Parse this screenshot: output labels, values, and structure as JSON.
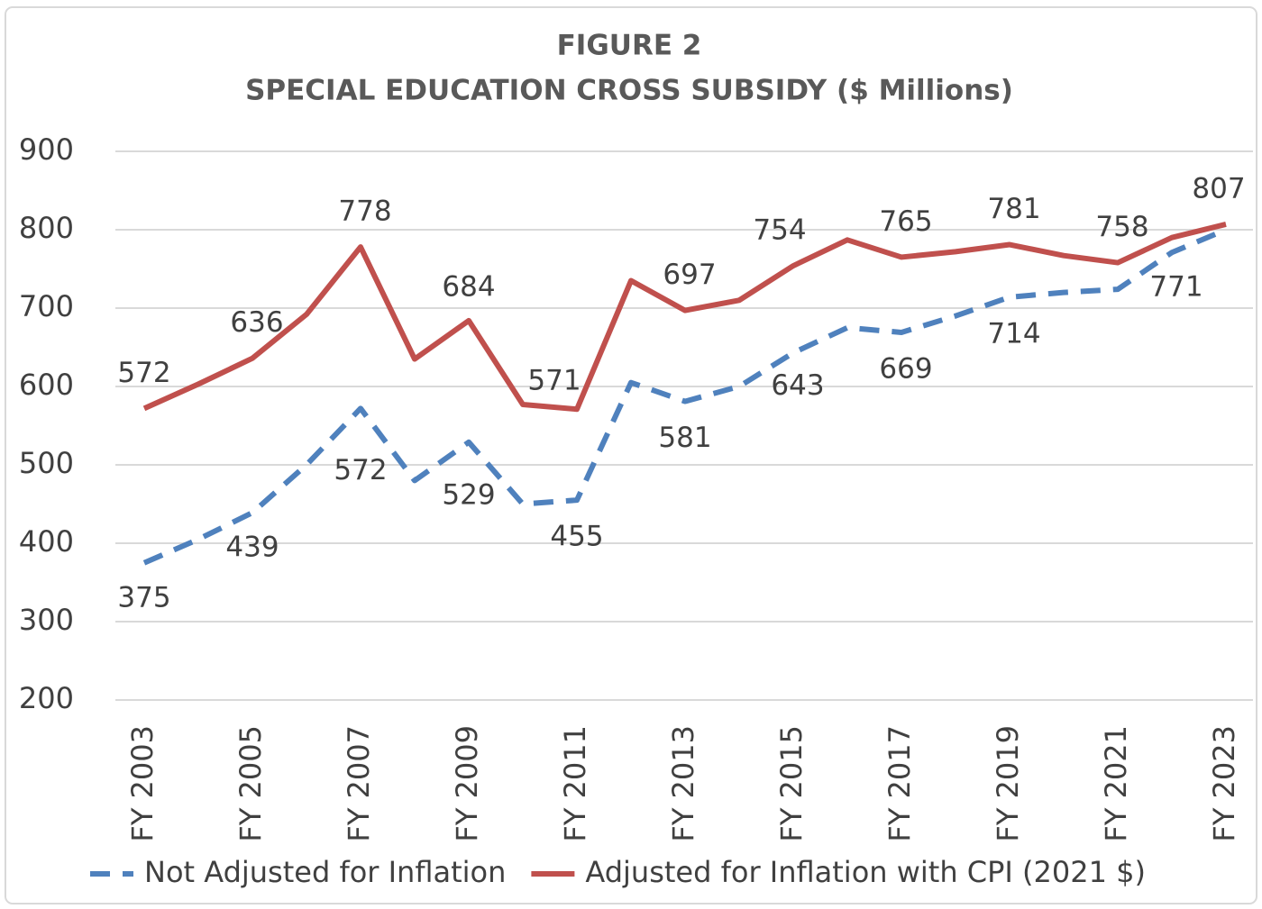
{
  "chart_data": {
    "type": "line",
    "title": "FIGURE 2",
    "subtitle": "SPECIAL EDUCATION CROSS SUBSIDY ($ Millions)",
    "categories": [
      "FY 2003",
      null,
      "FY 2005",
      null,
      "FY 2007",
      null,
      "FY 2009",
      null,
      "FY 2011",
      null,
      "FY 2013",
      null,
      "FY 2015",
      null,
      "FY 2017",
      null,
      "FY 2019",
      null,
      "FY 2021",
      null,
      "FY 2023"
    ],
    "series": [
      {
        "name": "Not Adjusted for Inflation",
        "color": "#4f81bd",
        "dashed": true,
        "values": [
          375,
          405,
          439,
          500,
          572,
          480,
          529,
          450,
          455,
          605,
          581,
          600,
          643,
          675,
          669,
          690,
          714,
          720,
          724,
          771,
          800
        ]
      },
      {
        "name": "Adjusted for Inflation with CPI (2021 $)",
        "color": "#c0504d",
        "dashed": false,
        "values": [
          572,
          603,
          636,
          692,
          778,
          635,
          684,
          577,
          571,
          735,
          697,
          710,
          754,
          787,
          765,
          772,
          781,
          767,
          758,
          790,
          807
        ]
      }
    ],
    "ylim": [
      200,
      900
    ],
    "yticks": [
      200,
      300,
      400,
      500,
      600,
      700,
      800,
      900
    ],
    "grid": true,
    "legend": "bottom"
  }
}
